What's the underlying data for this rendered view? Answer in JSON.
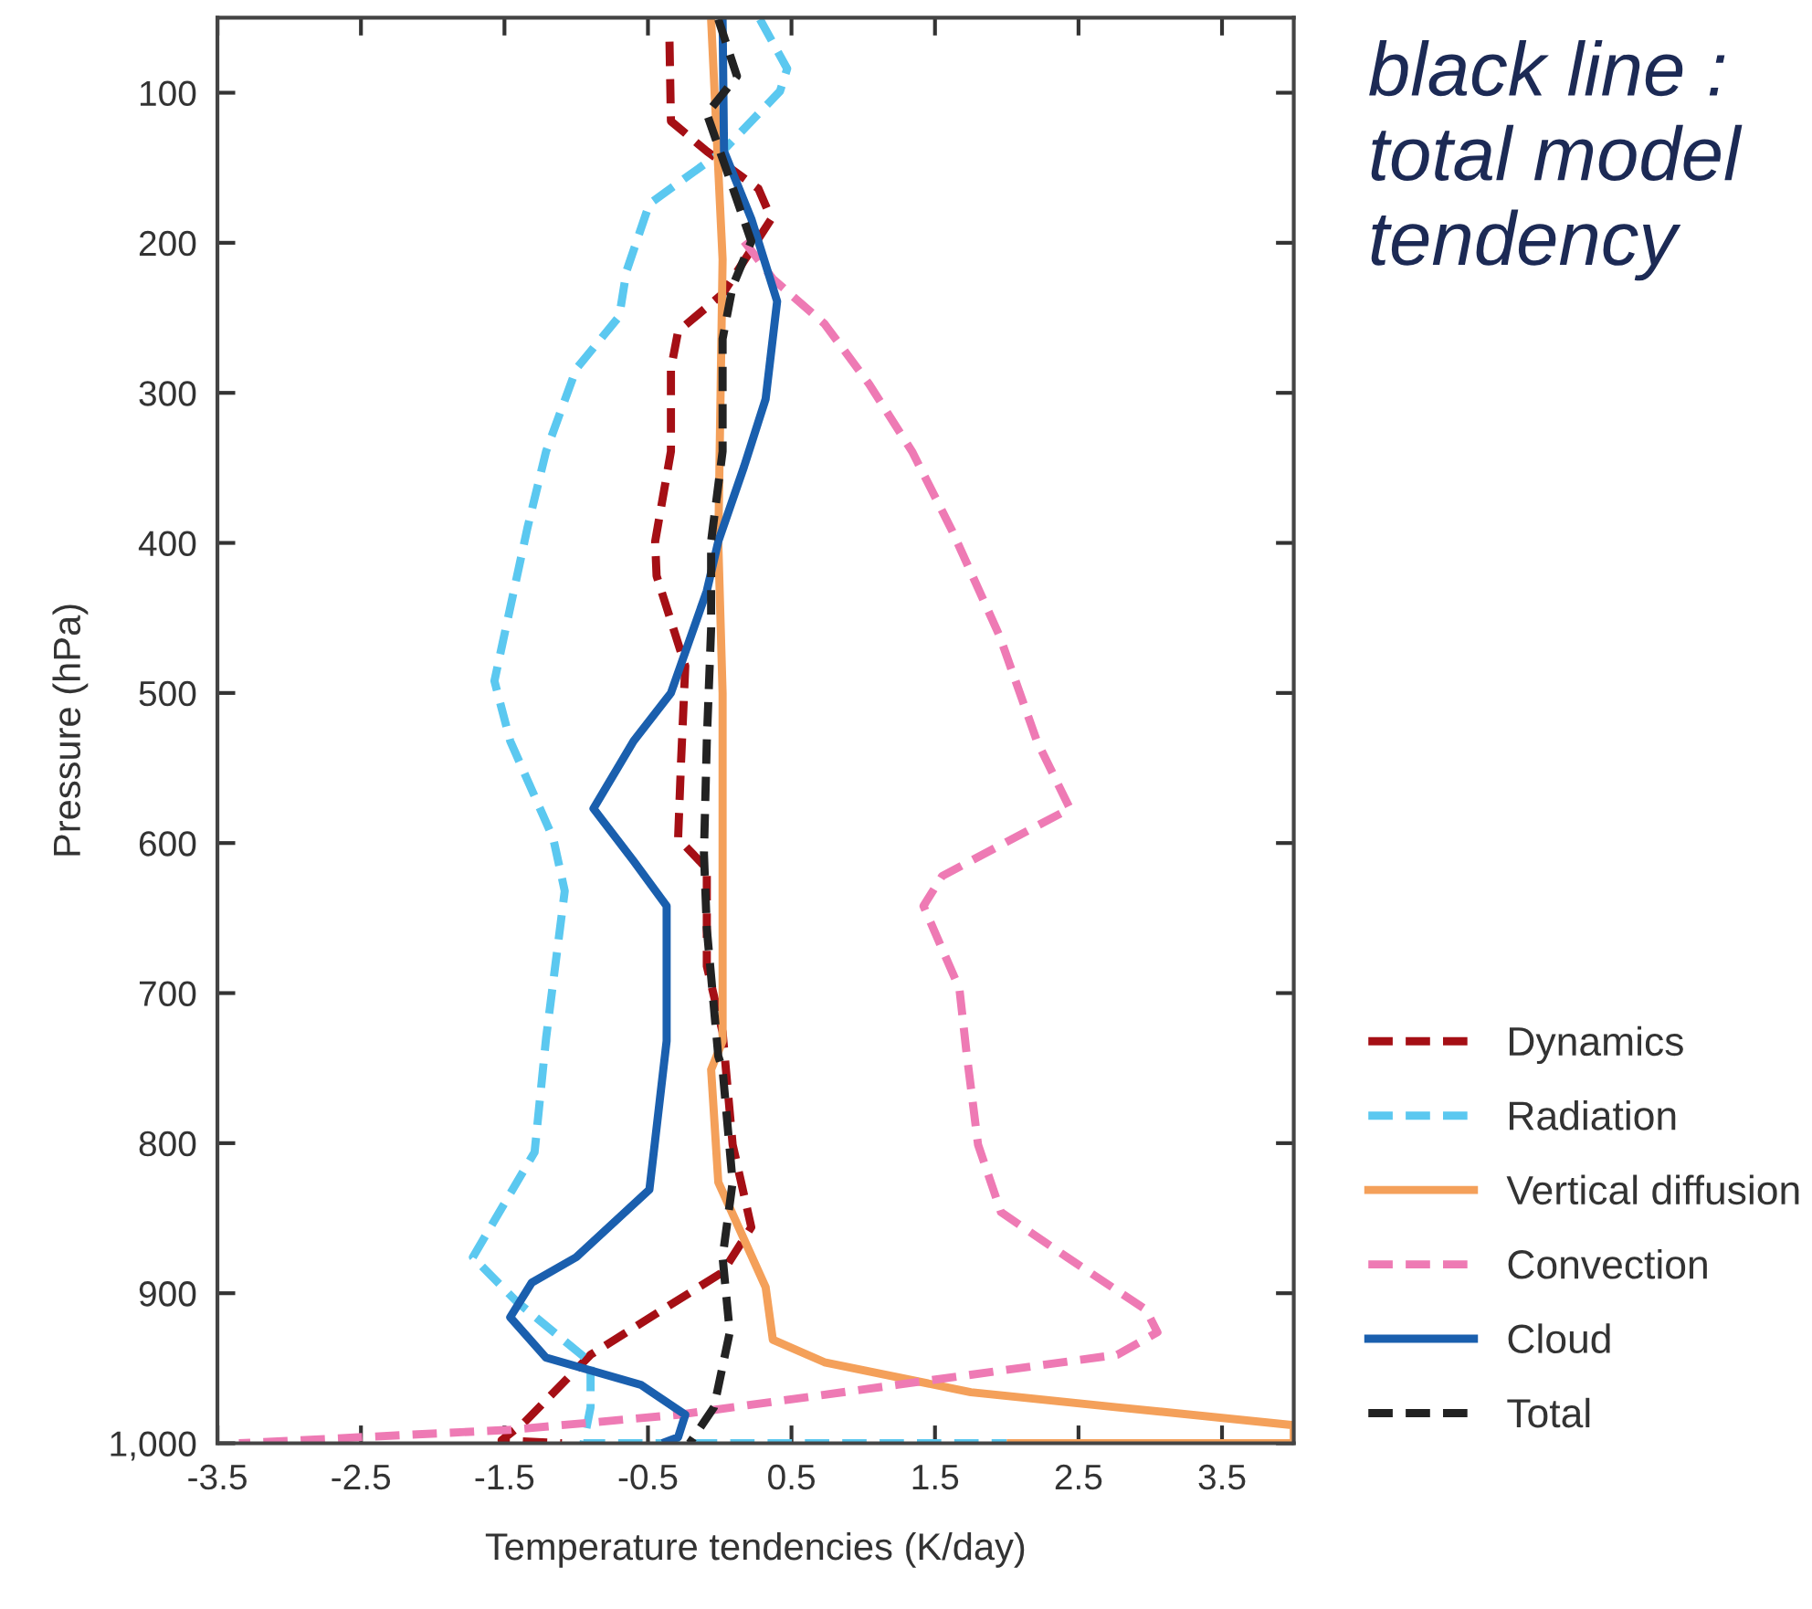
{
  "chart_data": {
    "type": "line",
    "xlabel": "Temperature tendencies (K/day)",
    "ylabel": "Pressure (hPa)",
    "annotations": [
      "black line : total model tendency"
    ],
    "xlim": [
      -3.5,
      4
    ],
    "xticks": [
      -3.5,
      -2.5,
      -1.5,
      -0.5,
      0.5,
      1.5,
      2.5,
      3.5
    ],
    "ylim": [
      1000,
      50
    ],
    "yticks": [
      100,
      200,
      300,
      400,
      500,
      600,
      700,
      800,
      900,
      {
        "value": 1000,
        "label": "1,000"
      }
    ],
    "grid": false,
    "legend": "right",
    "series": [
      {
        "name": "Dynamics",
        "color": "#a50f15",
        "line_style": "dashed",
        "x": [
          -0.35,
          -0.34,
          -0.09,
          0.27,
          0.36,
          0.02,
          -0.29,
          -0.34,
          -0.34,
          -0.45,
          -0.44,
          -0.24,
          -0.27,
          -0.29,
          -0.09,
          -0.09,
          0.02,
          0.09,
          0.22,
          0.02,
          -0.9,
          -1.36,
          -1.52,
          -1.1
        ],
        "values": [
          66,
          119,
          139,
          164,
          184,
          234,
          259,
          284,
          339,
          399,
          422,
          482,
          547,
          597,
          617,
          682,
          726,
          801,
          856,
          886,
          941,
          986,
          998,
          1000
        ]
      },
      {
        "name": "Radiation",
        "color": "#5bc8f0",
        "line_style": "dashed",
        "x": [
          0.28,
          0.47,
          0.42,
          0.02,
          -0.49,
          -0.65,
          -0.7,
          -1.0,
          -1.21,
          -1.34,
          -1.57,
          -1.46,
          -1.16,
          -1.08,
          -1.21,
          -1.29,
          -1.72,
          -1.41,
          -0.9,
          -0.9,
          -0.95,
          2.0
        ],
        "values": [
          51,
          84,
          99,
          139,
          174,
          219,
          249,
          284,
          339,
          390,
          492,
          532,
          597,
          632,
          730,
          806,
          876,
          906,
          946,
          976,
          1000,
          1000
        ]
      },
      {
        "name": "Vertical diffusion",
        "color": "#f4a05a",
        "line_style": "solid",
        "x": [
          -0.06,
          0.02,
          -0.01,
          0.02,
          0.02,
          -0.06,
          -0.01,
          0.32,
          0.37,
          0.73,
          1.75,
          2.77,
          4.0,
          4.0,
          2.0
        ],
        "values": [
          51,
          211,
          400,
          500,
          732,
          751,
          826,
          896,
          931,
          946,
          966,
          976,
          988,
          1000,
          1000
        ]
      },
      {
        "name": "Convection",
        "color": "#ee7ab4",
        "line_style": "dashed",
        "x": [
          0.17,
          0.37,
          0.73,
          1.04,
          1.34,
          1.62,
          1.95,
          2.21,
          2.44,
          1.55,
          1.42,
          1.67,
          1.72,
          1.8,
          1.96,
          2.42,
          2.97,
          3.05,
          2.77,
          1.24,
          -0.29,
          -1.46,
          -3.35
        ],
        "values": [
          199,
          224,
          254,
          294,
          339,
          392,
          462,
          532,
          577,
          622,
          642,
          697,
          740,
          801,
          846,
          876,
          911,
          926,
          941,
          961,
          981,
          991,
          1000
        ]
      },
      {
        "name": "Cloud",
        "color": "#1a5fae",
        "line_style": "solid",
        "x": [
          0.02,
          0.03,
          0.22,
          0.4,
          0.32,
          0.17,
          -0.01,
          -0.09,
          -0.34,
          -0.6,
          -0.88,
          -0.6,
          -0.37,
          -0.37,
          -0.49,
          -1.0,
          -1.31,
          -1.46,
          -1.21,
          -0.55,
          -0.24,
          -0.29,
          -0.4
        ],
        "values": [
          51,
          139,
          184,
          239,
          304,
          349,
          399,
          432,
          500,
          532,
          577,
          612,
          642,
          732,
          831,
          876,
          893,
          916,
          943,
          961,
          981,
          996,
          1000
        ]
      },
      {
        "name": "Total",
        "color": "#222222",
        "line_style": "dashed",
        "x": [
          -0.01,
          0.12,
          -0.09,
          0.02,
          0.22,
          0.09,
          0.02,
          0.02,
          -0.06,
          -0.06,
          -0.09,
          -0.11,
          -0.09,
          -0.01,
          0.02,
          0.09,
          0.02,
          0.07,
          -0.04,
          -0.21
        ],
        "values": [
          51,
          89,
          114,
          144,
          199,
          229,
          264,
          339,
          399,
          457,
          532,
          607,
          657,
          742,
          751,
          826,
          876,
          926,
          976,
          1000
        ]
      }
    ]
  }
}
